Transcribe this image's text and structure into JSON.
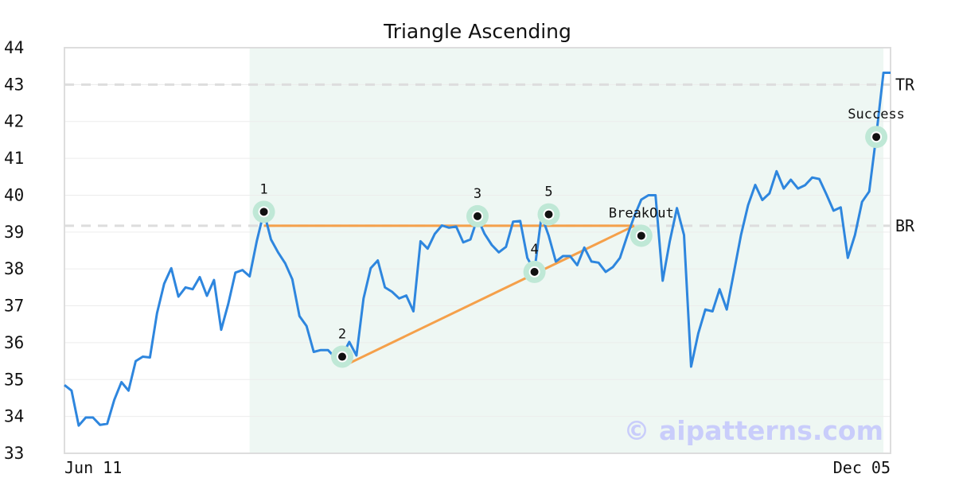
{
  "chart_data": {
    "type": "line",
    "title": "Triangle Ascending",
    "xlabel": "",
    "ylabel": "",
    "ylim": [
      33,
      44
    ],
    "yticks": [
      33,
      34,
      35,
      36,
      37,
      38,
      39,
      40,
      41,
      42,
      43,
      44
    ],
    "x_tick_labels": [
      "Jun 11",
      "Dec 05"
    ],
    "grid": true,
    "watermark": "© aipatterns.com",
    "colors": {
      "price_line": "#2e86de",
      "pattern_lines": "#f5a04a",
      "pattern_zone": "#eef7f3",
      "marker_halo": "#bfe8d6",
      "level_lines": "#dddddd"
    },
    "series": [
      {
        "values": [
          34.85,
          34.7,
          33.75,
          33.97,
          33.97,
          33.77,
          33.8,
          34.45,
          34.93,
          34.7,
          35.5,
          35.62,
          35.6,
          36.8,
          37.6,
          38.02,
          37.25,
          37.5,
          37.45,
          37.78,
          37.27,
          37.7,
          36.35,
          37.05,
          37.9,
          37.97,
          37.8,
          38.75,
          39.55,
          38.8,
          38.45,
          38.15,
          37.72,
          36.72,
          36.45,
          35.75,
          35.8,
          35.8,
          35.6,
          35.65,
          36.02,
          35.65,
          37.2,
          38.02,
          38.23,
          37.5,
          37.38,
          37.2,
          37.28,
          36.85,
          38.75,
          38.55,
          38.95,
          39.18,
          39.12,
          39.15,
          38.72,
          38.8,
          39.38,
          38.95,
          38.65,
          38.45,
          38.6,
          39.28,
          39.3,
          38.3,
          37.95,
          39.45,
          38.9,
          38.2,
          38.35,
          38.35,
          38.1,
          38.58,
          38.2,
          38.17,
          37.92,
          38.05,
          38.3,
          38.88,
          39.42,
          39.88,
          40.0,
          40.0,
          37.68,
          38.75,
          39.65,
          38.92,
          35.35,
          36.25,
          36.9,
          36.85,
          37.45,
          36.9,
          37.9,
          38.92,
          39.73,
          40.28,
          39.87,
          40.05,
          40.65,
          40.18,
          40.42,
          40.18,
          40.27,
          40.48,
          40.44,
          40.02,
          39.58,
          39.67,
          38.3,
          38.92,
          39.82,
          40.1,
          41.62,
          43.32,
          43.32
        ]
      }
    ],
    "shaded_zone": {
      "start_index": 26,
      "end_index": 115
    },
    "levels": [
      {
        "label": "TR",
        "value": 43.0
      },
      {
        "label": "BR",
        "value": 39.17
      }
    ],
    "pattern_lines": [
      {
        "from": [
          28,
          39.17
        ],
        "to": [
          80,
          39.17
        ]
      },
      {
        "from": [
          39,
          35.35
        ],
        "to": [
          80,
          39.17
        ]
      }
    ],
    "markers": [
      {
        "label": "1",
        "index": 28,
        "value": 39.55
      },
      {
        "label": "2",
        "index": 39,
        "value": 35.62
      },
      {
        "label": "3",
        "index": 58,
        "value": 39.43
      },
      {
        "label": "4",
        "index": 66,
        "value": 37.92
      },
      {
        "label": "5",
        "index": 68,
        "value": 39.48
      },
      {
        "label": "BreakOut",
        "index": 81,
        "value": 38.9
      },
      {
        "label": "Success",
        "index": 114,
        "value": 41.58
      }
    ]
  }
}
